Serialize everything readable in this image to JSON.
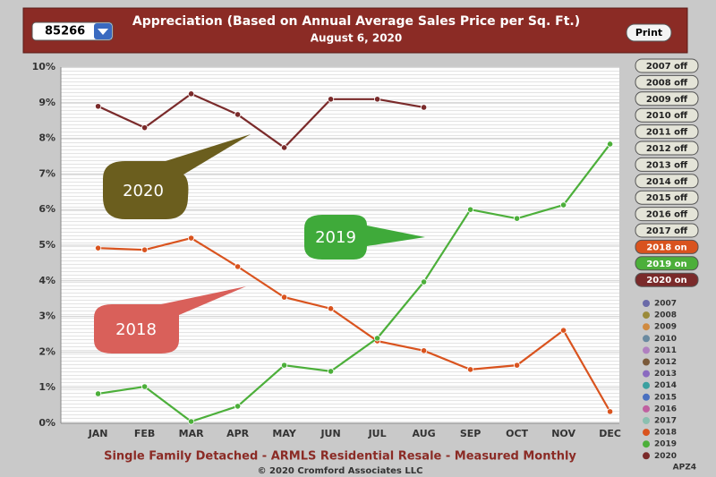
{
  "chart_data": {
    "type": "line",
    "title": "Appreciation (Based on Annual Average Sales Price per Sq. Ft.)",
    "subtitle": "August 6, 2020",
    "categories": [
      "JAN",
      "FEB",
      "MAR",
      "APR",
      "MAY",
      "JUN",
      "JUL",
      "AUG",
      "SEP",
      "OCT",
      "NOV",
      "DEC"
    ],
    "series": [
      {
        "name": "2018",
        "color": "#d9531e",
        "values": [
          4.92,
          4.87,
          5.2,
          4.4,
          3.54,
          3.22,
          2.31,
          2.04,
          1.51,
          1.63,
          2.61,
          0.33
        ]
      },
      {
        "name": "2019",
        "color": "#4caf3a",
        "values": [
          0.83,
          1.03,
          0.05,
          0.48,
          1.63,
          1.46,
          2.39,
          3.97,
          6.0,
          5.75,
          6.13,
          7.84
        ]
      },
      {
        "name": "2020",
        "color": "#7a2a2a",
        "values": [
          8.9,
          8.3,
          9.25,
          8.67,
          7.74,
          9.1,
          9.1,
          8.87,
          null,
          null,
          null,
          null
        ]
      }
    ],
    "ylim": [
      0,
      10
    ],
    "yticks": [
      {
        "value": 0,
        "label": "0%"
      },
      {
        "value": 1,
        "label": "1%"
      },
      {
        "value": 2,
        "label": "2%"
      },
      {
        "value": 3,
        "label": "3%"
      },
      {
        "value": 4,
        "label": "4%"
      },
      {
        "value": 5,
        "label": "5%"
      },
      {
        "value": 6,
        "label": "6%"
      },
      {
        "value": 7,
        "label": "7%"
      },
      {
        "value": 8,
        "label": "8%"
      },
      {
        "value": 9,
        "label": "9%"
      },
      {
        "value": 10,
        "label": "10%"
      }
    ],
    "grid": true,
    "callouts": [
      "2020",
      "2019",
      "2018"
    ],
    "footer_title": "Single Family Detached - ARMLS Residential Resale - Measured Monthly",
    "copyright": "© 2020 Cromford Associates LLC",
    "code": "APZ4"
  },
  "ui": {
    "zip": "85266",
    "print": "Print",
    "toggles": [
      {
        "label": "2007 off",
        "color": "#e4e4d8"
      },
      {
        "label": "2008 off",
        "color": "#e4e4d8"
      },
      {
        "label": "2009 off",
        "color": "#e4e4d8"
      },
      {
        "label": "2010 off",
        "color": "#e4e4d8"
      },
      {
        "label": "2011 off",
        "color": "#e4e4d8"
      },
      {
        "label": "2012 off",
        "color": "#e4e4d8"
      },
      {
        "label": "2013 off",
        "color": "#e4e4d8"
      },
      {
        "label": "2014 off",
        "color": "#e4e4d8"
      },
      {
        "label": "2015 off",
        "color": "#e4e4d8"
      },
      {
        "label": "2016 off",
        "color": "#e4e4d8"
      },
      {
        "label": "2017 off",
        "color": "#e4e4d8"
      },
      {
        "label": "2018 on",
        "color": "#d9531e"
      },
      {
        "label": "2019 on",
        "color": "#4caf3a"
      },
      {
        "label": "2020 on",
        "color": "#7a2a2a"
      }
    ],
    "legend": [
      {
        "label": "2007",
        "color": "#6a6aa8"
      },
      {
        "label": "2008",
        "color": "#9a8a3a"
      },
      {
        "label": "2009",
        "color": "#d08a40"
      },
      {
        "label": "2010",
        "color": "#6a8aa0"
      },
      {
        "label": "2011",
        "color": "#b080c0"
      },
      {
        "label": "2012",
        "color": "#7a5a3a"
      },
      {
        "label": "2013",
        "color": "#8a6ac0"
      },
      {
        "label": "2014",
        "color": "#3aa0a0"
      },
      {
        "label": "2015",
        "color": "#4a70c0"
      },
      {
        "label": "2016",
        "color": "#c060a0"
      },
      {
        "label": "2017",
        "color": "#8ac0b0"
      },
      {
        "label": "2018",
        "color": "#d9531e"
      },
      {
        "label": "2019",
        "color": "#4caf3a"
      },
      {
        "label": "2020",
        "color": "#7a2a2a"
      }
    ]
  }
}
